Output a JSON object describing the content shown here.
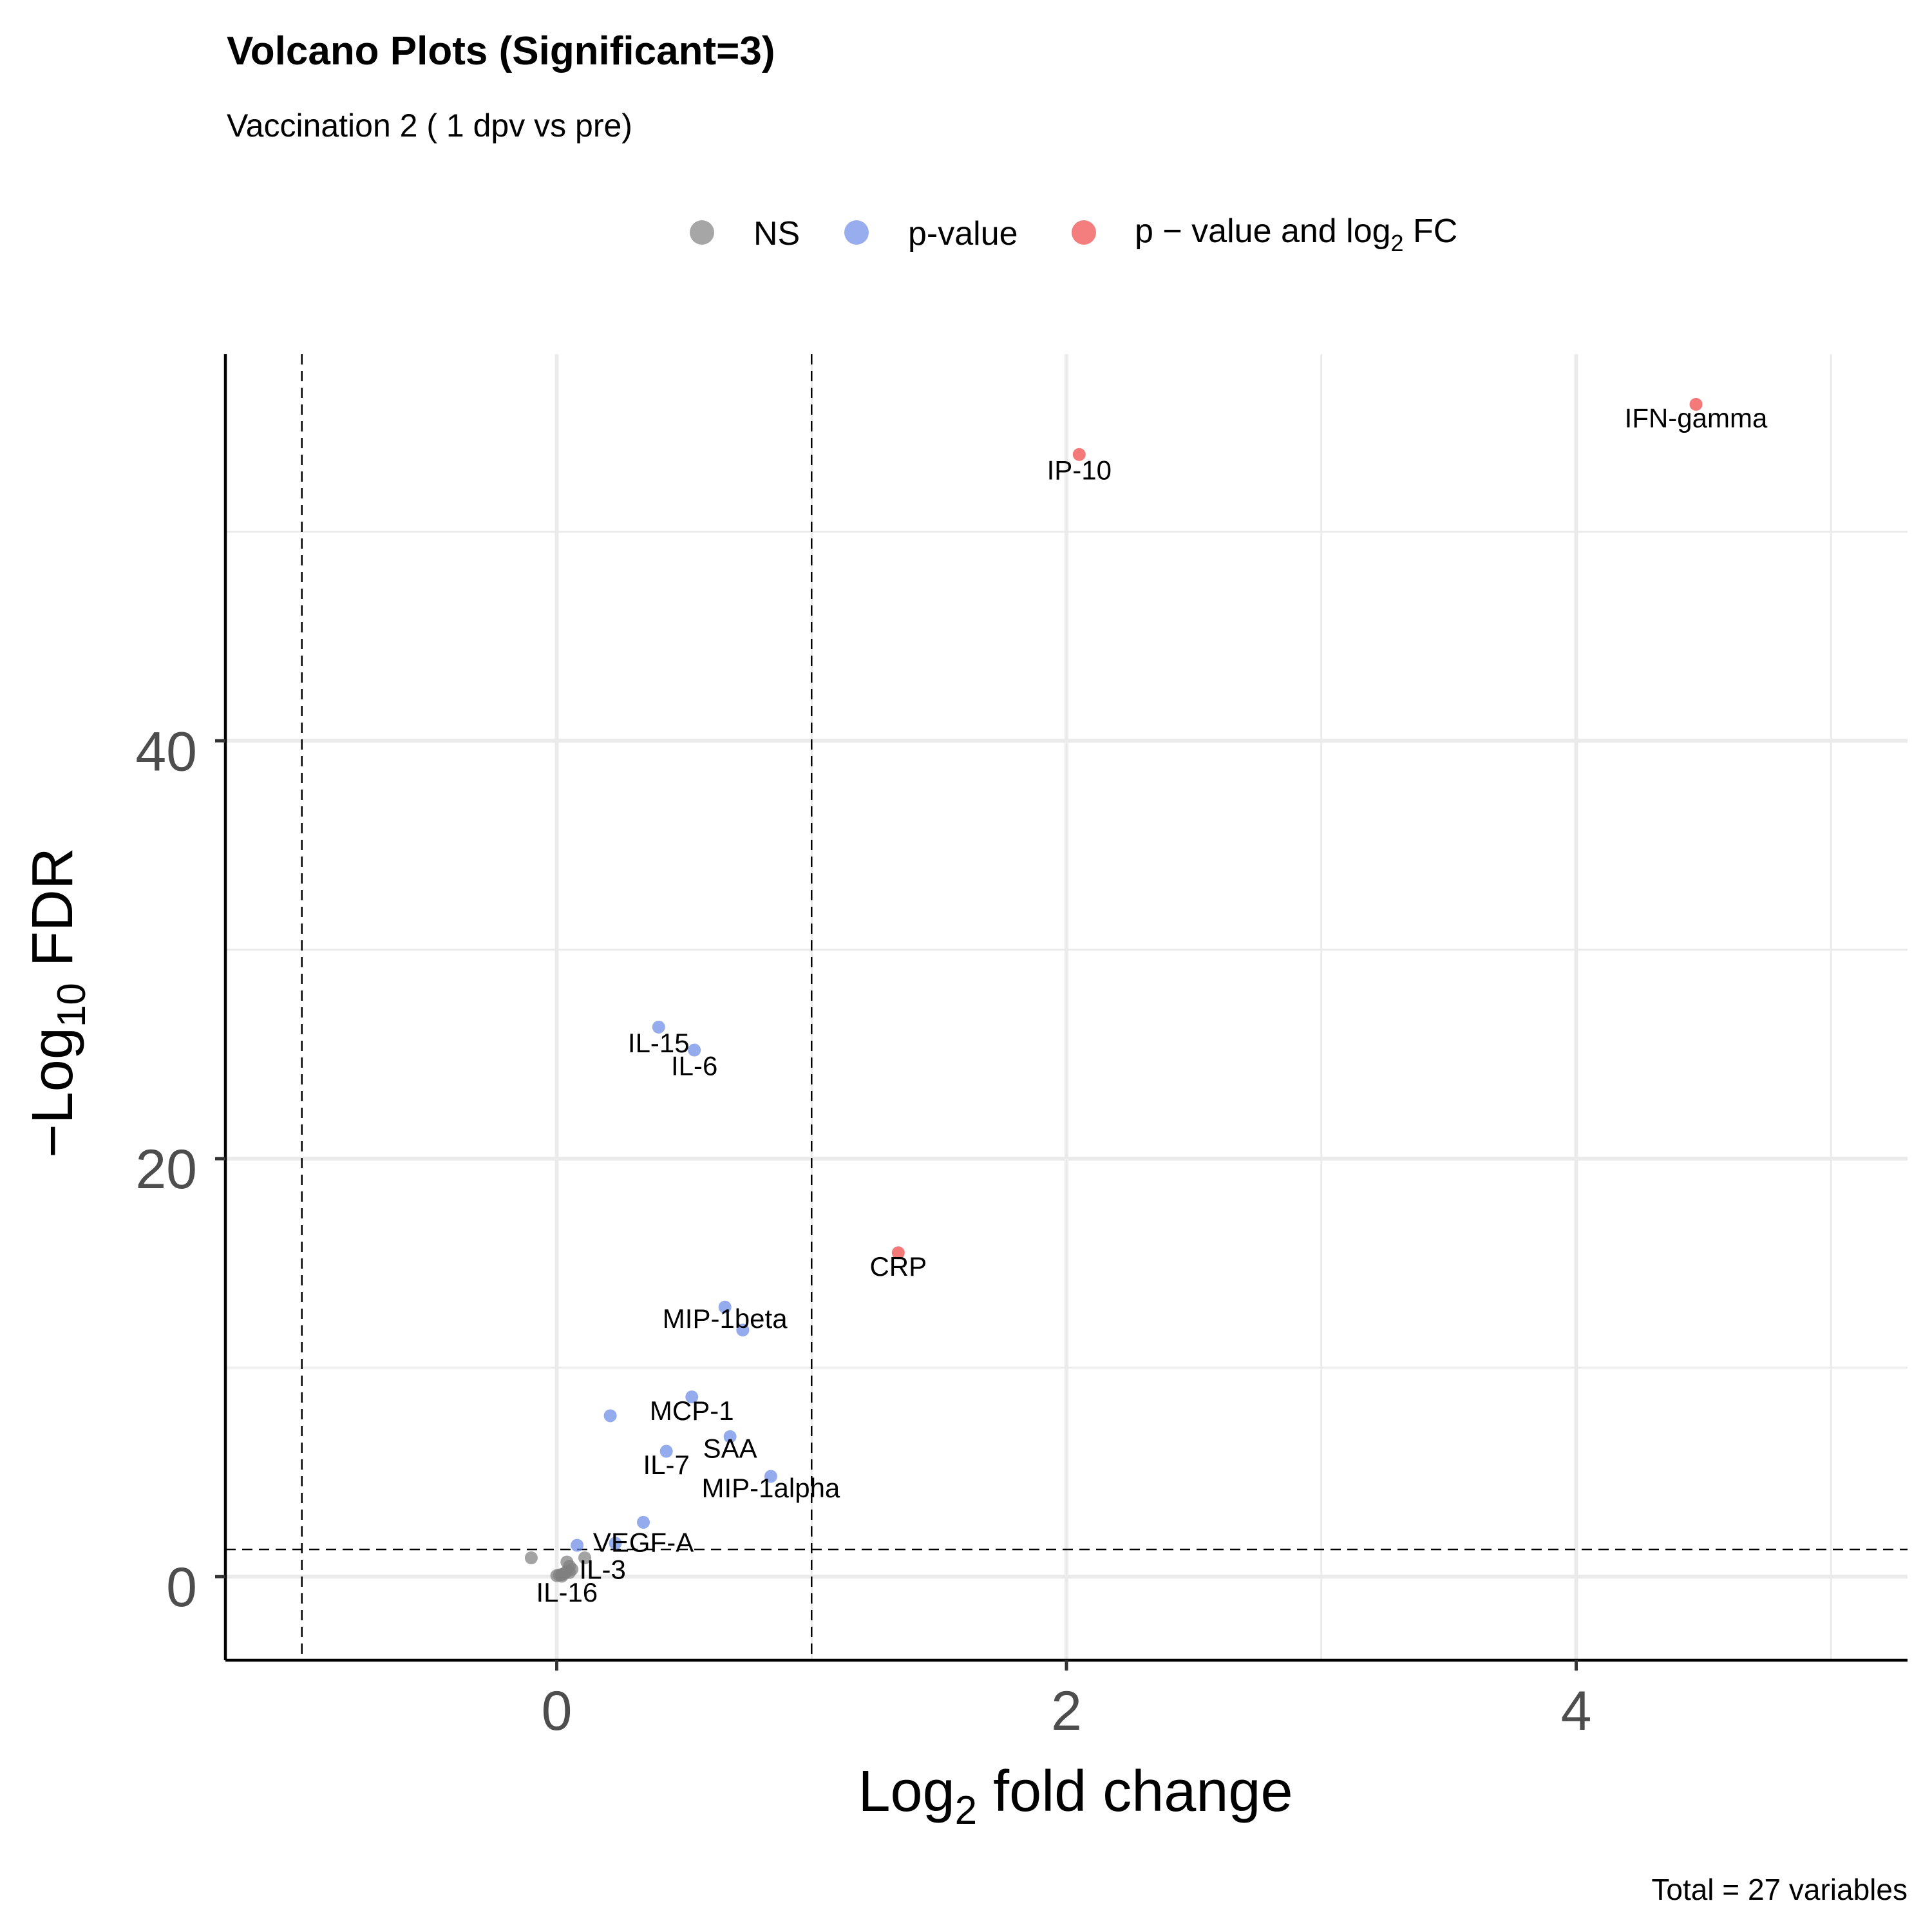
{
  "chart_data": {
    "type": "scatter",
    "title": "Volcano Plots (Significant=3)",
    "subtitle": "Vaccination 2 ( 1 dpv vs pre)",
    "caption": "Total = 27 variables",
    "xlabel": {
      "main": "Log",
      "sub": "2",
      "rest": " fold change"
    },
    "ylabel": {
      "main": "−Log",
      "sub": "10",
      "rest": " FDR"
    },
    "xlim": [
      -1.3,
      5.3
    ],
    "ylim": [
      -4,
      58.5
    ],
    "x_ticks": [
      0,
      2,
      4
    ],
    "x_tick_labels": [
      "0",
      "2",
      "4"
    ],
    "x_minor_ticks": [
      1,
      3,
      5
    ],
    "y_ticks": [
      0,
      20,
      40
    ],
    "y_tick_labels": [
      "0",
      "20",
      "40"
    ],
    "y_minor_ticks": [
      10,
      30,
      50
    ],
    "grid": true,
    "thresholds": {
      "log2fc": [
        -1,
        1
      ],
      "neg_log10_fdr": 1.3
    },
    "legend": {
      "position": "top",
      "items": [
        {
          "key": "ns",
          "label": "NS",
          "color": "#808080"
        },
        {
          "key": "p",
          "label": "p-value",
          "color": "#6b8ae6"
        },
        {
          "key": "pfc",
          "label_a": "p − value and log",
          "label_sub": "2",
          "label_b": " FC",
          "color": "#f04646"
        }
      ]
    },
    "colors": {
      "ns": "#808080",
      "p": "#6b8ae6",
      "pfc": "#f04646"
    },
    "points": [
      {
        "x": 4.47,
        "y": 56.1,
        "group": "pfc"
      },
      {
        "x": 2.05,
        "y": 53.7,
        "group": "pfc"
      },
      {
        "x": 1.34,
        "y": 15.5,
        "group": "pfc"
      },
      {
        "x": 0.4,
        "y": 26.3,
        "group": "p"
      },
      {
        "x": 0.54,
        "y": 25.2,
        "group": "p"
      },
      {
        "x": 0.66,
        "y": 12.9,
        "group": "p"
      },
      {
        "x": 0.73,
        "y": 11.8,
        "group": "p"
      },
      {
        "x": 0.53,
        "y": 8.6,
        "group": "p"
      },
      {
        "x": 0.21,
        "y": 7.7,
        "group": "p"
      },
      {
        "x": 0.68,
        "y": 6.7,
        "group": "p"
      },
      {
        "x": 0.43,
        "y": 6.0,
        "group": "p"
      },
      {
        "x": 0.84,
        "y": 4.8,
        "group": "p"
      },
      {
        "x": 0.34,
        "y": 2.6,
        "group": "p"
      },
      {
        "x": 0.23,
        "y": 1.6,
        "group": "p"
      },
      {
        "x": 0.08,
        "y": 1.5,
        "group": "p"
      },
      {
        "x": -0.1,
        "y": 0.9,
        "group": "ns"
      },
      {
        "x": 0.11,
        "y": 0.9,
        "group": "ns"
      },
      {
        "x": 0.04,
        "y": 0.7,
        "group": "ns"
      },
      {
        "x": 0.05,
        "y": 0.5,
        "group": "ns"
      },
      {
        "x": 0.06,
        "y": 0.35,
        "group": "ns"
      },
      {
        "x": 0.04,
        "y": 0.25,
        "group": "ns"
      },
      {
        "x": 0.05,
        "y": 0.2,
        "group": "ns"
      },
      {
        "x": 0.03,
        "y": 0.15,
        "group": "ns"
      },
      {
        "x": 0.02,
        "y": 0.1,
        "group": "ns"
      },
      {
        "x": 0.01,
        "y": 0.08,
        "group": "ns"
      },
      {
        "x": 0.0,
        "y": 0.05,
        "group": "ns"
      },
      {
        "x": 0.02,
        "y": 0.02,
        "group": "ns"
      }
    ],
    "labels": [
      {
        "text": "IFN-gamma",
        "x": 4.47,
        "y": 55.0
      },
      {
        "text": "IP-10",
        "x": 2.05,
        "y": 52.5
      },
      {
        "text": "IL-15",
        "x": 0.4,
        "y": 25.1
      },
      {
        "text": "IL-6",
        "x": 0.54,
        "y": 24.0
      },
      {
        "text": "CRP",
        "x": 1.34,
        "y": 14.4
      },
      {
        "text": "MIP-1beta",
        "x": 0.66,
        "y": 11.9
      },
      {
        "text": "MCP-1",
        "x": 0.53,
        "y": 7.5
      },
      {
        "text": "SAA",
        "x": 0.68,
        "y": 5.7
      },
      {
        "text": "IL-7",
        "x": 0.43,
        "y": 4.9
      },
      {
        "text": "MIP-1alpha",
        "x": 0.84,
        "y": 3.8
      },
      {
        "text": "VEGF-A",
        "x": 0.34,
        "y": 1.2
      },
      {
        "text": "IL-3",
        "x": 0.18,
        "y": -0.1
      },
      {
        "text": "IL-16",
        "x": 0.04,
        "y": -1.2
      }
    ]
  }
}
